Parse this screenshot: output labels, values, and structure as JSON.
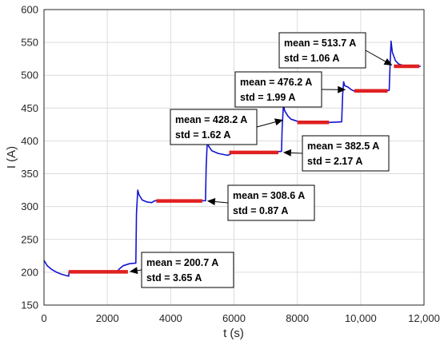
{
  "chart_data": {
    "type": "line",
    "xlabel": "t (s)",
    "ylabel": "I (A)",
    "xlim": [
      0,
      12000
    ],
    "ylim": [
      150,
      600
    ],
    "xticks": [
      0,
      2000,
      4000,
      6000,
      8000,
      10000,
      12000
    ],
    "xtick_labels": [
      "0",
      "2000",
      "4000",
      "6000",
      "8000",
      "10,000",
      "12,000"
    ],
    "yticks": [
      150,
      200,
      250,
      300,
      350,
      400,
      450,
      500,
      550,
      600
    ],
    "ytick_labels": [
      "150",
      "200",
      "250",
      "300",
      "350",
      "400",
      "450",
      "500",
      "550",
      "600"
    ],
    "grid": true,
    "colors": {
      "signal": "#1414d2",
      "mean": "#e02020"
    },
    "series": [
      {
        "x": [
          0,
          100,
          250,
          400,
          550,
          700,
          780,
          790,
          1200,
          1800,
          2300,
          2400,
          2500,
          2700,
          2900,
          2920,
          2960,
          3000,
          3100,
          3250,
          3400,
          3500,
          3800,
          4300,
          4800,
          5100,
          5120,
          5160,
          5200,
          5300,
          5500,
          5800,
          6000,
          6500,
          7000,
          7500,
          7520,
          7560,
          7600,
          7700,
          7800,
          8000,
          8500,
          9000,
          9400,
          9430,
          9460,
          9500,
          9600,
          9700,
          9800,
          10000,
          10500,
          10900,
          10930,
          10960,
          11000,
          11100,
          11200,
          11400,
          11700,
          11900
        ],
        "y": [
          218,
          210,
          204,
          200,
          197,
          195,
          194,
          201,
          201,
          201,
          201,
          206,
          210,
          213,
          214,
          290,
          325,
          318,
          310,
          307,
          306,
          309,
          308.6,
          308.6,
          308.6,
          309,
          360,
          405,
          392,
          385,
          381,
          378,
          382.5,
          382.5,
          382.5,
          384,
          420,
          455,
          446,
          438,
          433,
          430,
          428.2,
          428.2,
          429,
          470,
          490,
          484,
          482,
          478,
          476,
          476.2,
          476.2,
          477,
          515,
          552,
          535,
          522,
          517,
          514,
          513.7,
          513.7
        ]
      }
    ],
    "mean_segments": [
      {
        "x": [
          780,
          2650
        ],
        "y": 200.7
      },
      {
        "x": [
          3550,
          5000
        ],
        "y": 308.6
      },
      {
        "x": [
          5850,
          7400
        ],
        "y": 382.5
      },
      {
        "x": [
          8000,
          9000
        ],
        "y": 428.2
      },
      {
        "x": [
          9800,
          10850
        ],
        "y": 476.2
      },
      {
        "x": [
          11050,
          11850
        ],
        "y": 513.7
      }
    ],
    "annotations": [
      {
        "mean": "mean = 200.7 A",
        "std": "std = 3.65 A",
        "point": [
          2700,
          201
        ]
      },
      {
        "mean": "mean = 308.6 A",
        "std": "std = 0.87 A",
        "point": [
          5150,
          308.6
        ]
      },
      {
        "mean": "mean = 382.5 A",
        "std": "std = 2.17 A",
        "point": [
          7550,
          382.5
        ]
      },
      {
        "mean": "mean = 428.2 A",
        "std": "std = 1.62 A",
        "point": [
          7550,
          432
        ]
      },
      {
        "mean": "mean = 476.2 A",
        "std": "std = 1.99 A",
        "point": [
          9530,
          478
        ]
      },
      {
        "mean": "mean = 513.7 A",
        "std": "std = 1.06 A",
        "point": [
          11000,
          515
        ]
      }
    ]
  }
}
